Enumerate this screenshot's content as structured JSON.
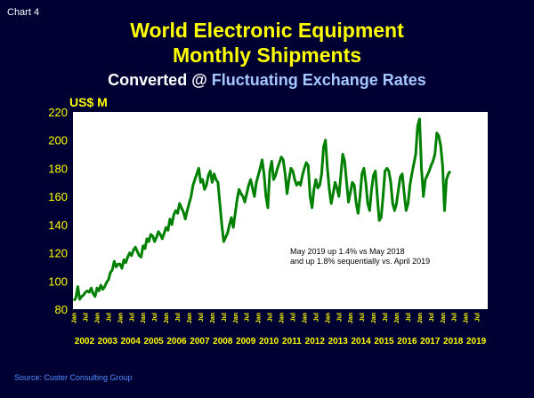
{
  "header": {
    "chart_label": "Chart 4",
    "title_line1": "World Electronic Equipment",
    "title_line2": "Monthly Shipments",
    "subtitle_part1": "Converted @",
    "subtitle_part2": "Fluctuating Exchange Rates",
    "unit": "US$ M"
  },
  "footer": {
    "source": "Source: Custer Consulting Group"
  },
  "colors": {
    "background": "#000033",
    "title": "#ffff00",
    "line": "#008000",
    "plot_bg": "#ffffff",
    "source": "#4d8fff"
  },
  "chart_data": {
    "type": "line",
    "title": "World Electronic Equipment Monthly Shipments",
    "subtitle": "Converted @ Fluctuating Exchange Rates",
    "ylabel": "US$ M",
    "ylim": [
      80,
      220
    ],
    "yticks": [
      80,
      100,
      120,
      140,
      160,
      180,
      200,
      220
    ],
    "grid": false,
    "legend": "none",
    "x_start": "2002-01",
    "x_end": "2019-05",
    "month_tick_labels": [
      "Jan",
      "Jul"
    ],
    "year_labels": [
      "2002",
      "2003",
      "2004",
      "2005",
      "2006",
      "2007",
      "2008",
      "2009",
      "2010",
      "2011",
      "2012",
      "2013",
      "2014",
      "2015",
      "2016",
      "2017",
      "2018",
      "2019"
    ],
    "annotation": [
      "May 2019 up 1.4% vs May 2018",
      "and up 1.8% sequentially vs. April 2019"
    ],
    "series": [
      {
        "name": "",
        "values": [
          86,
          88,
          96,
          87,
          89,
          90,
          92,
          93,
          92,
          95,
          91,
          89,
          95,
          93,
          97,
          94,
          96,
          99,
          101,
          106,
          108,
          114,
          110,
          112,
          112,
          109,
          115,
          113,
          117,
          120,
          118,
          122,
          124,
          121,
          118,
          117,
          125,
          123,
          130,
          128,
          133,
          132,
          128,
          131,
          135,
          133,
          130,
          134,
          138,
          136,
          144,
          140,
          147,
          150,
          148,
          155,
          152,
          149,
          144,
          150,
          155,
          160,
          168,
          172,
          176,
          180,
          170,
          172,
          165,
          168,
          175,
          178,
          170,
          176,
          172,
          170,
          155,
          140,
          128,
          131,
          134,
          140,
          145,
          138,
          148,
          158,
          165,
          162,
          160,
          156,
          162,
          168,
          172,
          166,
          160,
          170,
          175,
          180,
          186,
          176,
          160,
          152,
          178,
          185,
          172,
          175,
          180,
          184,
          188,
          186,
          176,
          162,
          172,
          180,
          178,
          172,
          168,
          170,
          168,
          175,
          180,
          184,
          182,
          160,
          152,
          165,
          172,
          166,
          168,
          176,
          195,
          200,
          180,
          165,
          155,
          162,
          170,
          166,
          160,
          175,
          190,
          185,
          170,
          156,
          163,
          170,
          168,
          155,
          148,
          160,
          176,
          180,
          170,
          155,
          150,
          165,
          175,
          178,
          160,
          143,
          145,
          160,
          178,
          180,
          178,
          170,
          155,
          150,
          155,
          165,
          174,
          176,
          162,
          150,
          155,
          168,
          176,
          183,
          190,
          210,
          215,
          180,
          160,
          172,
          175,
          178,
          182,
          185,
          190,
          205,
          203,
          196,
          182,
          150,
          172,
          176,
          178
        ]
      }
    ]
  }
}
